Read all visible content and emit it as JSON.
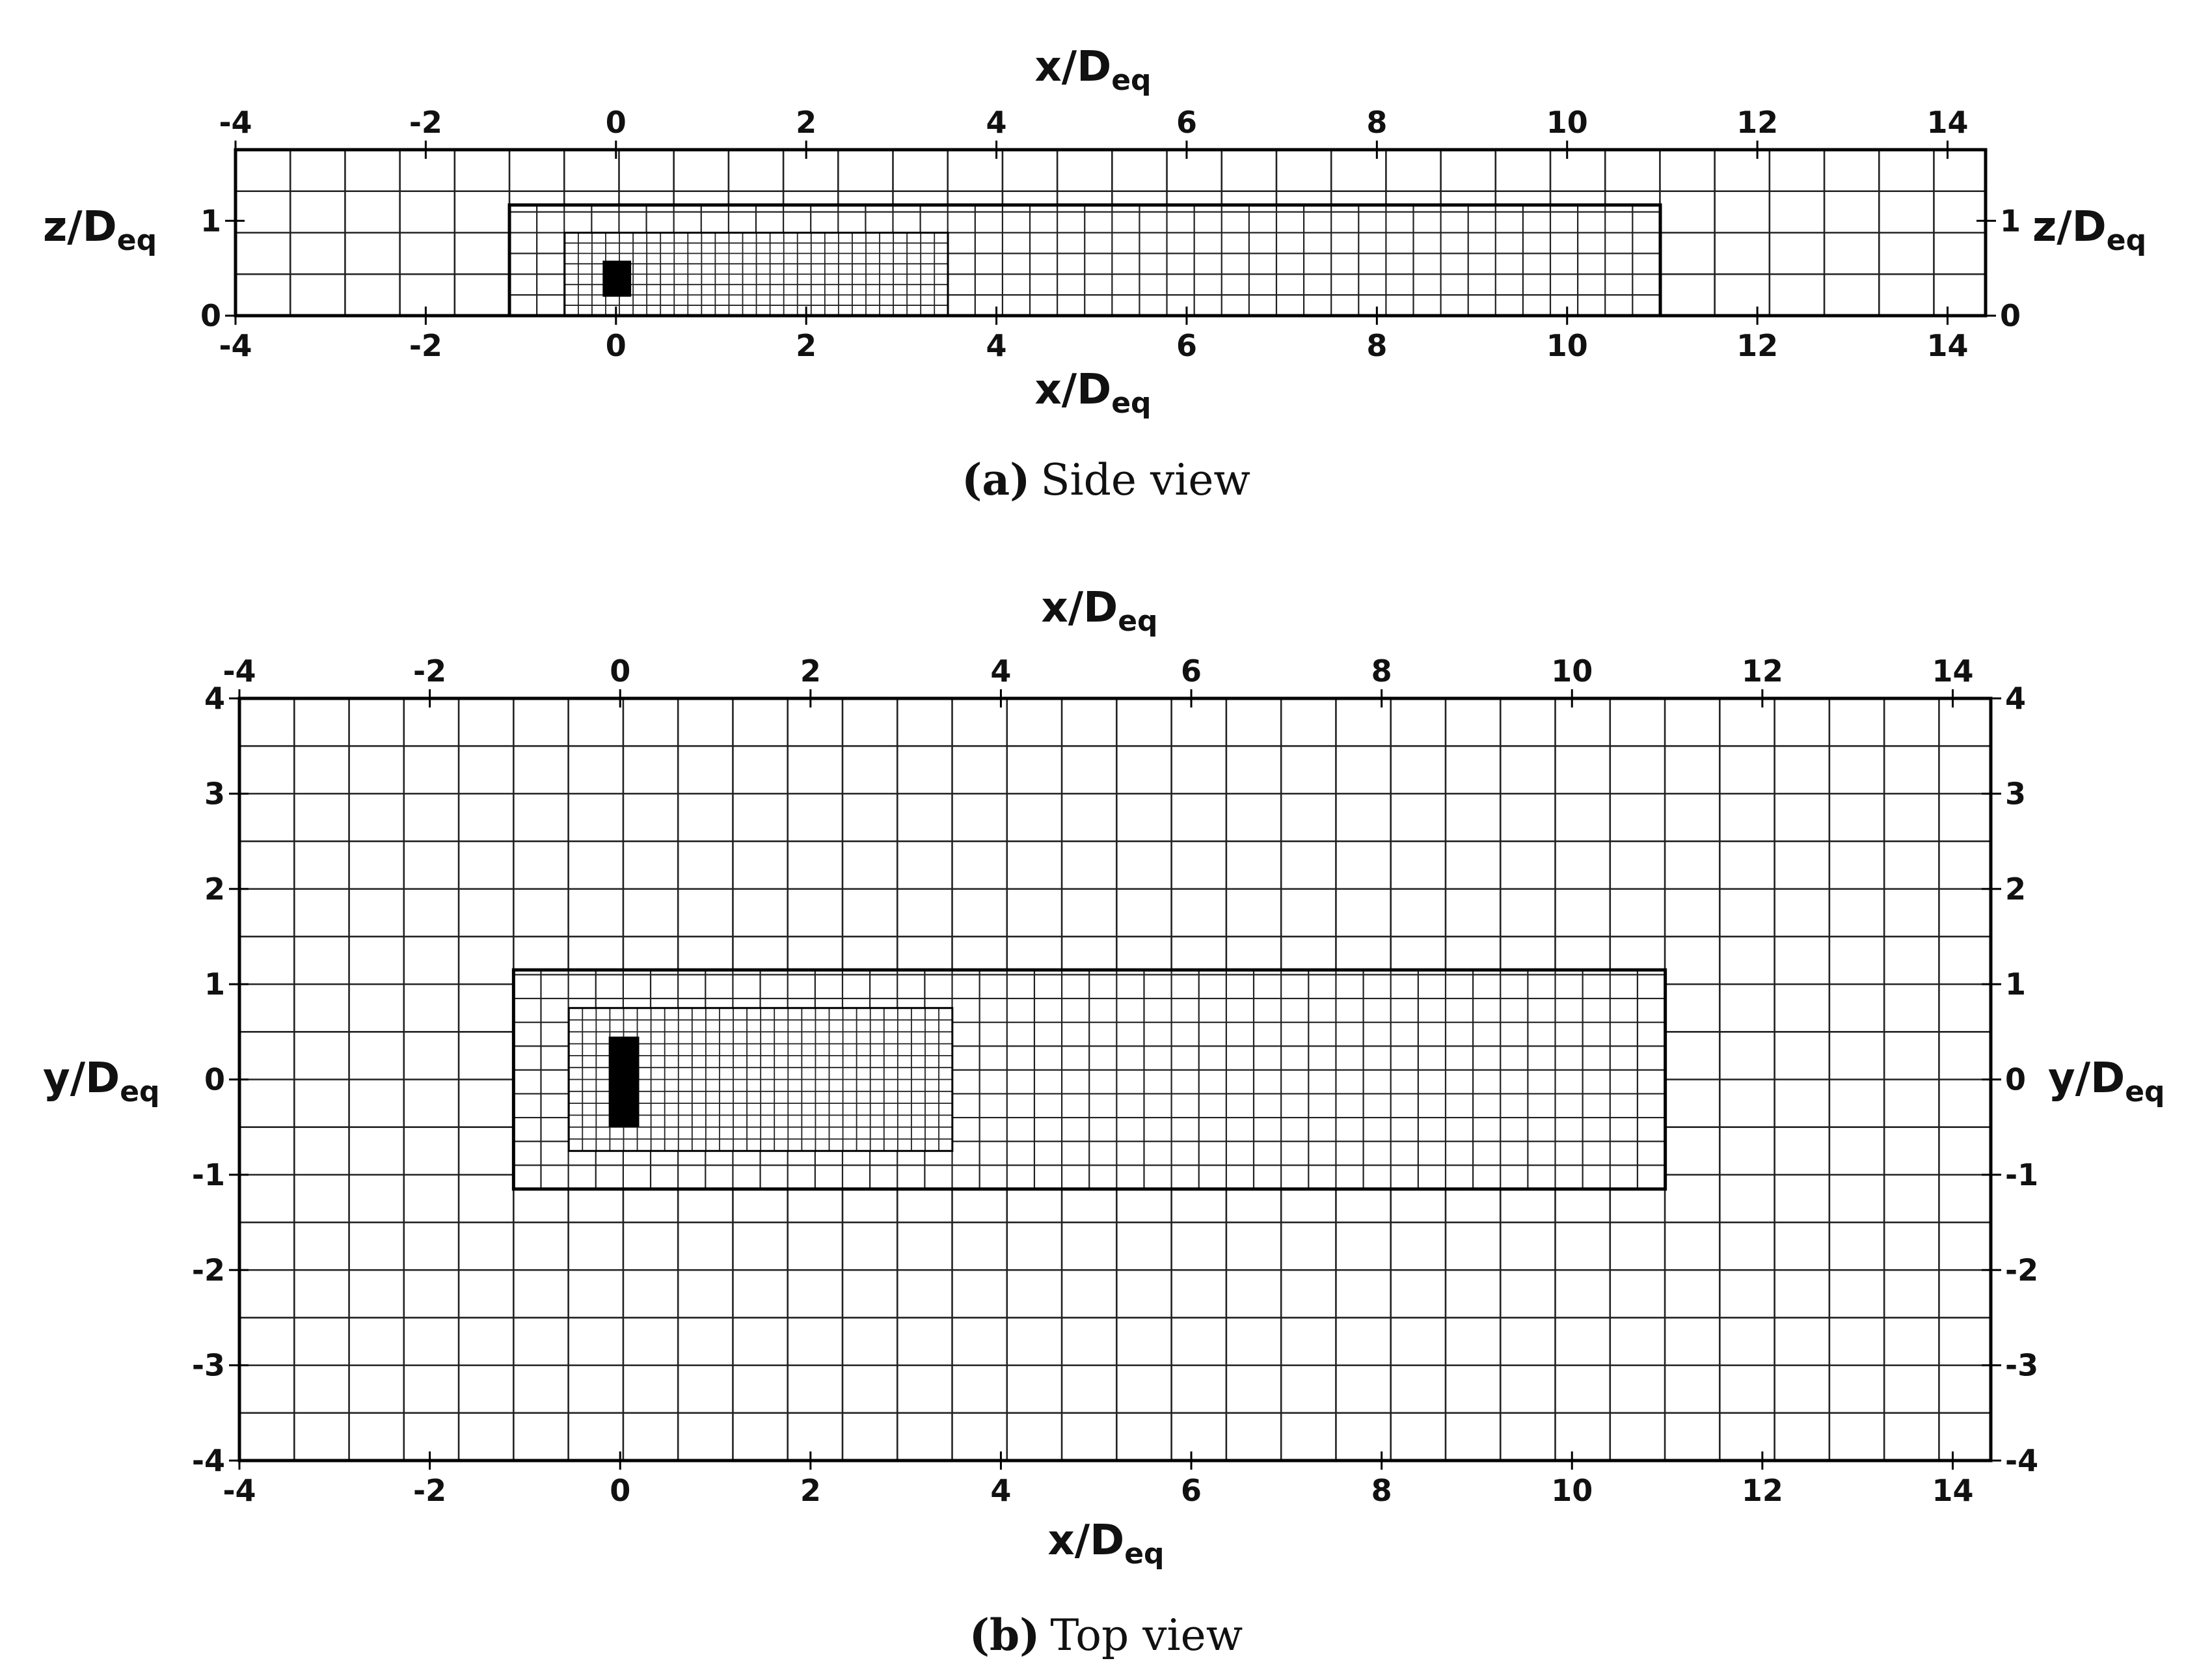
{
  "panels": [
    {
      "id": "side",
      "caption_tag": "(a)",
      "caption_text": "Side view",
      "x_label": "x/D",
      "x_label_sub": "eq",
      "v_label": "z/D",
      "v_label_sub": "eq",
      "x_ticks": [
        "-4",
        "-2",
        "0",
        "2",
        "4",
        "6",
        "8",
        "10",
        "12",
        "14"
      ],
      "v_ticks": [
        "0",
        "1"
      ],
      "domain": {
        "x": [
          -4,
          14.4
        ],
        "v": [
          0,
          1.75
        ]
      }
    },
    {
      "id": "top",
      "caption_tag": "(b)",
      "caption_text": "Top view",
      "x_label": "x/D",
      "x_label_sub": "eq",
      "v_label": "y/D",
      "v_label_sub": "eq",
      "x_ticks": [
        "-4",
        "-2",
        "0",
        "2",
        "4",
        "6",
        "8",
        "10",
        "12",
        "14"
      ],
      "v_ticks": [
        "-4",
        "-3",
        "-2",
        "-1",
        "0",
        "1",
        "2",
        "3",
        "4"
      ],
      "domain": {
        "x": [
          -4,
          14.4
        ],
        "v": [
          -4,
          4
        ]
      }
    }
  ]
}
